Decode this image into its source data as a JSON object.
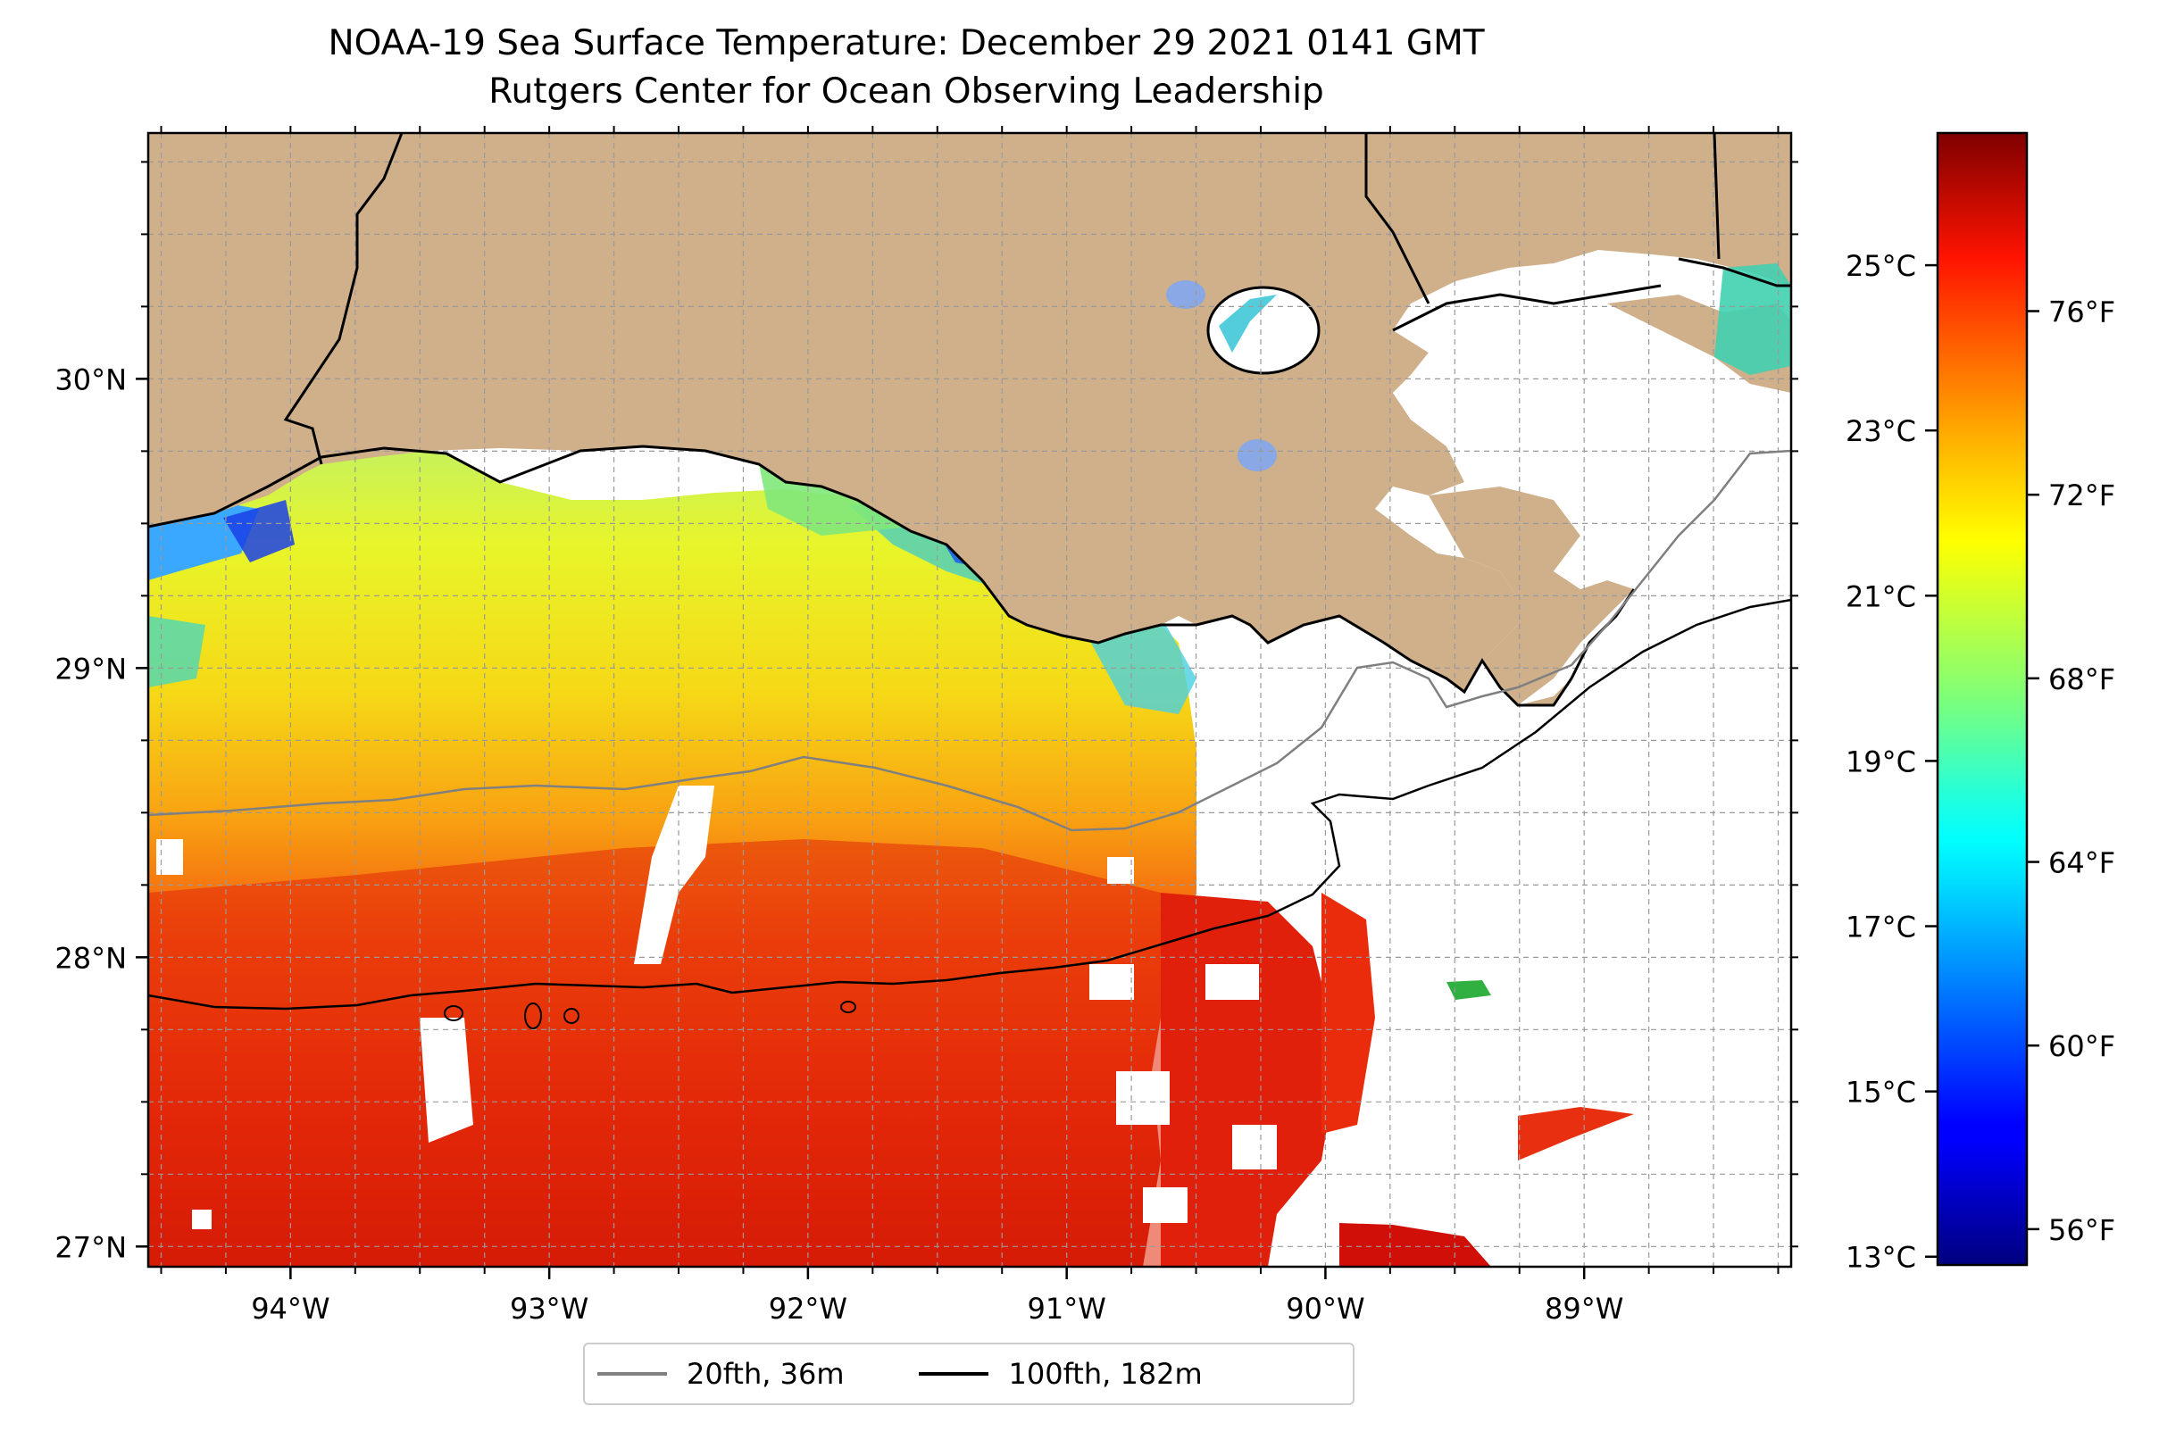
{
  "title": {
    "line1": "NOAA-19 Sea Surface Temperature: December 29 2021 0141 GMT",
    "line2": "Rutgers Center for Ocean Observing Leadership"
  },
  "map": {
    "lon_range": [
      -94.55,
      -88.2
    ],
    "lat_range": [
      26.93,
      30.85
    ],
    "lon_ticks": [
      {
        "value": -94,
        "label": "94°W"
      },
      {
        "value": -93,
        "label": "93°W"
      },
      {
        "value": -92,
        "label": "92°W"
      },
      {
        "value": -91,
        "label": "91°W"
      },
      {
        "value": -90,
        "label": "90°W"
      },
      {
        "value": -89,
        "label": "89°W"
      }
    ],
    "lat_ticks": [
      {
        "value": 27,
        "label": "27°N"
      },
      {
        "value": 28,
        "label": "28°N"
      },
      {
        "value": 29,
        "label": "29°N"
      },
      {
        "value": 30,
        "label": "30°N"
      }
    ],
    "gridlines": true,
    "colors": {
      "land": "#cfb08a",
      "ocean_nodata": "#ffffff",
      "coast": "#000000"
    }
  },
  "colorbar": {
    "colormap": "jet",
    "range_celsius": [
      12.9,
      26.6
    ],
    "celsius_ticks": [
      {
        "value": 13,
        "label": "13°C"
      },
      {
        "value": 15,
        "label": "15°C"
      },
      {
        "value": 17,
        "label": "17°C"
      },
      {
        "value": 19,
        "label": "19°C"
      },
      {
        "value": 21,
        "label": "21°C"
      },
      {
        "value": 23,
        "label": "23°C"
      },
      {
        "value": 25,
        "label": "25°C"
      }
    ],
    "fahrenheit_ticks": [
      {
        "value": 56,
        "label": "56°F"
      },
      {
        "value": 60,
        "label": "60°F"
      },
      {
        "value": 64,
        "label": "64°F"
      },
      {
        "value": 68,
        "label": "68°F"
      },
      {
        "value": 72,
        "label": "72°F"
      },
      {
        "value": 76,
        "label": "76°F"
      }
    ]
  },
  "legend": {
    "items": [
      {
        "label": "20fth, 36m",
        "color": "#808080"
      },
      {
        "label": "100fth, 182m",
        "color": "#000000"
      }
    ]
  }
}
